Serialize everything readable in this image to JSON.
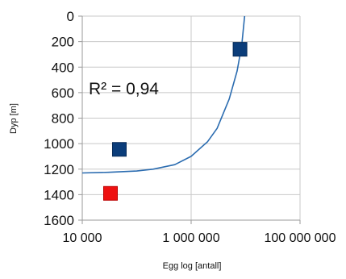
{
  "chart_data": {
    "type": "scatter",
    "xlabel": "Egg log [antall]",
    "ylabel": "Dyp [m]",
    "x_scale": "log",
    "xlim": [
      10000,
      100000000
    ],
    "ylim": [
      0,
      1600
    ],
    "y_inverted": true,
    "x_ticks": [
      {
        "value": 10000,
        "label": "10 000"
      },
      {
        "value": 1000000,
        "label": "1 000 000"
      },
      {
        "value": 100000000,
        "label": "100 000 000"
      }
    ],
    "y_ticks": [
      {
        "value": 0,
        "label": "0"
      },
      {
        "value": 200,
        "label": "200"
      },
      {
        "value": 400,
        "label": "400"
      },
      {
        "value": 600,
        "label": "600"
      },
      {
        "value": 800,
        "label": "800"
      },
      {
        "value": 1000,
        "label": "1000"
      },
      {
        "value": 1200,
        "label": "1200"
      },
      {
        "value": 1400,
        "label": "1400"
      },
      {
        "value": 1600,
        "label": "1600"
      }
    ],
    "grid": true,
    "legend": "none",
    "annotation": "R² = 0,94",
    "points": [
      {
        "x": 7900000,
        "y": 260,
        "color": "#0b3d7a",
        "marker": "square"
      },
      {
        "x": 48000,
        "y": 1045,
        "color": "#0b3d7a",
        "marker": "square"
      },
      {
        "x": 33000,
        "y": 1390,
        "color": "#ee1111",
        "marker": "square"
      }
    ],
    "trendline": {
      "color": "#2b6cb0",
      "x": [
        10000,
        30000,
        100000,
        200000,
        500000,
        1000000,
        2000000,
        3000000,
        5000000,
        7000000,
        8500000,
        9600000
      ],
      "y": [
        1230,
        1225,
        1215,
        1200,
        1165,
        1100,
        985,
        880,
        650,
        430,
        230,
        0
      ]
    }
  }
}
